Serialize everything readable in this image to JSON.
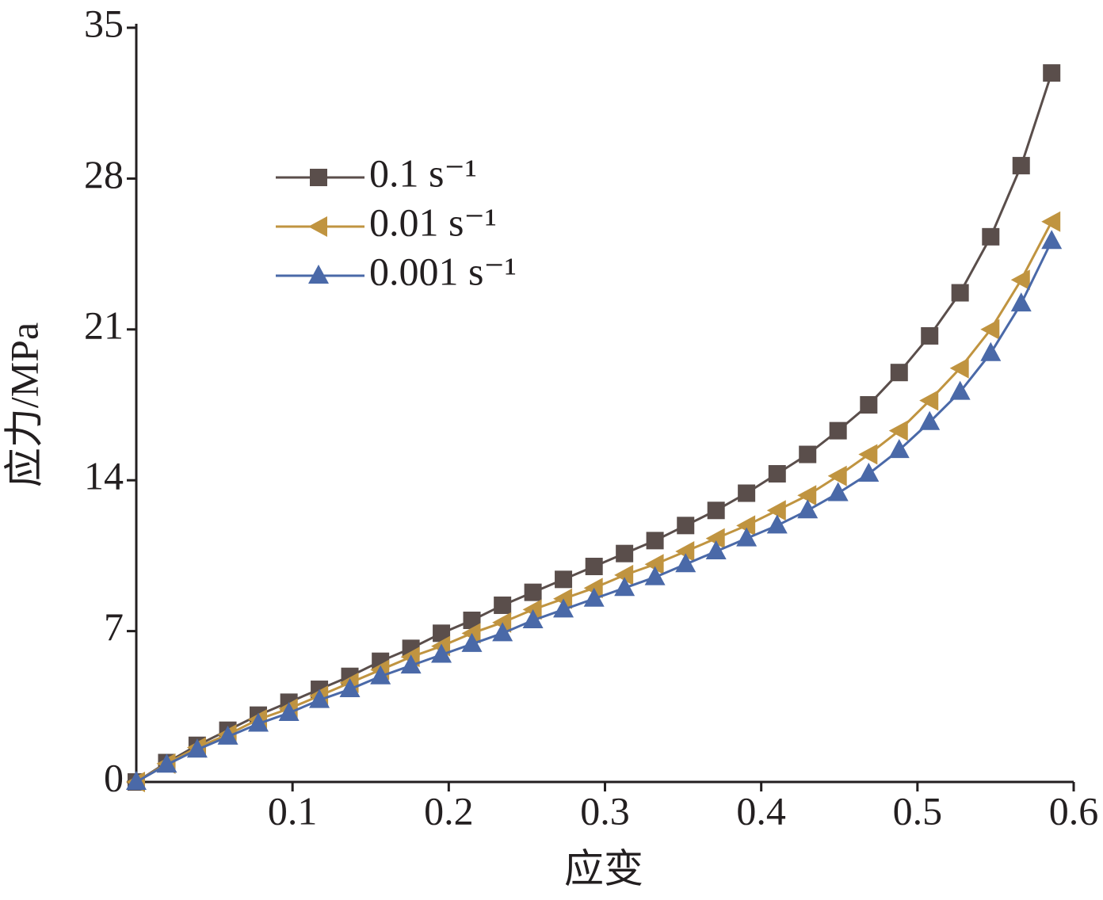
{
  "chart_data": {
    "type": "line",
    "x_label": "应变",
    "y_label": "应力/MPa",
    "x": [
      0,
      0.0195,
      0.039,
      0.0586,
      0.0781,
      0.0977,
      0.1172,
      0.1367,
      0.1563,
      0.1758,
      0.1953,
      0.2148,
      0.2344,
      0.2539,
      0.2734,
      0.293,
      0.3125,
      0.332,
      0.3516,
      0.3711,
      0.3906,
      0.4102,
      0.4297,
      0.4492,
      0.4688,
      0.4883,
      0.5078,
      0.5273,
      0.5469,
      0.5664,
      0.5859
    ],
    "series": [
      {
        "name": "0.1 s⁻¹",
        "color": "#5a4e4b",
        "marker": "square",
        "values": [
          0,
          0.9,
          1.7,
          2.4,
          3.1,
          3.7,
          4.3,
          4.9,
          5.6,
          6.2,
          6.9,
          7.5,
          8.2,
          8.8,
          9.4,
          10.0,
          10.6,
          11.2,
          11.9,
          12.6,
          13.4,
          14.3,
          15.2,
          16.3,
          17.5,
          19.0,
          20.7,
          22.7,
          25.3,
          28.6,
          32.9
        ]
      },
      {
        "name": "0.01 s⁻¹",
        "color": "#c09440",
        "marker": "triangle-left",
        "values": [
          0,
          0.85,
          1.6,
          2.2,
          2.9,
          3.4,
          4.0,
          4.6,
          5.2,
          5.8,
          6.3,
          6.9,
          7.4,
          8.0,
          8.5,
          9.0,
          9.6,
          10.1,
          10.7,
          11.3,
          11.9,
          12.6,
          13.3,
          14.2,
          15.2,
          16.3,
          17.7,
          19.2,
          21.0,
          23.3,
          26.0
        ]
      },
      {
        "name": "0.001 s⁻¹",
        "color": "#4a69a8",
        "marker": "triangle-up",
        "values": [
          0,
          0.8,
          1.5,
          2.1,
          2.7,
          3.2,
          3.8,
          4.3,
          4.9,
          5.4,
          5.9,
          6.4,
          6.9,
          7.5,
          8.0,
          8.5,
          9.0,
          9.5,
          10.1,
          10.7,
          11.3,
          11.9,
          12.6,
          13.4,
          14.3,
          15.4,
          16.7,
          18.1,
          19.9,
          22.2,
          25.1
        ]
      }
    ],
    "xlim": [
      0,
      0.6
    ],
    "xticks": [
      0.1,
      0.2,
      0.3,
      0.4,
      0.5,
      0.6
    ],
    "ylim": [
      0,
      35
    ],
    "yticks": [
      0,
      7,
      14,
      21,
      28,
      35
    ],
    "legend": "upper left"
  }
}
